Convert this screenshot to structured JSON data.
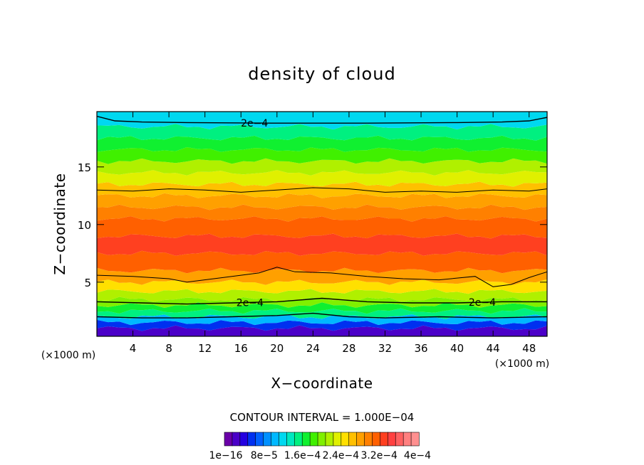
{
  "chart_data": {
    "type": "heatmap",
    "title": "density of cloud",
    "xlabel": "X−coordinate",
    "ylabel": "Z−coordinate",
    "x_unit": "(×1000 m)",
    "y_unit": "(×1000 m)",
    "xlim": [
      0,
      50
    ],
    "ylim": [
      0.3,
      19.8
    ],
    "x_ticks": [
      4,
      8,
      12,
      16,
      20,
      24,
      28,
      32,
      36,
      40,
      44,
      48
    ],
    "y_ticks": [
      5,
      10,
      15
    ],
    "contour_interval_text": "CONTOUR INTERVAL = 1.000E−04",
    "contour_interval": 0.0001,
    "colorbar": {
      "colors": [
        "#6a00a8",
        "#4b00c8",
        "#2400e0",
        "#0030f0",
        "#0060ff",
        "#0090ff",
        "#00b8ff",
        "#00d8f0",
        "#00e8c0",
        "#00f080",
        "#10f030",
        "#40f000",
        "#80f000",
        "#b0f000",
        "#e0f000",
        "#ffe000",
        "#ffc000",
        "#ffa000",
        "#ff8000",
        "#ff6000",
        "#ff4020",
        "#ff4040",
        "#ff6060",
        "#ff8080",
        "#ff9090"
      ],
      "labels": [
        "1e−16",
        "8e−5",
        "1.6e−4",
        "2.4e−4",
        "3.2e−4",
        "4e−4"
      ],
      "min": 1e-16,
      "max": 0.0004
    },
    "layers": [
      {
        "z": 0.3,
        "value": 2e-05
      },
      {
        "z": 1.0,
        "value": 4e-05
      },
      {
        "z": 1.5,
        "value": 8e-05
      },
      {
        "z": 2.0,
        "value": 0.00013
      },
      {
        "z": 2.5,
        "value": 0.00016
      },
      {
        "z": 3.0,
        "value": 0.00019
      },
      {
        "z": 3.5,
        "value": 0.00021
      },
      {
        "z": 4.2,
        "value": 0.00023
      },
      {
        "z": 5.0,
        "value": 0.00026
      },
      {
        "z": 6.0,
        "value": 0.0003
      },
      {
        "z": 7.5,
        "value": 0.00032
      },
      {
        "z": 9.0,
        "value": 0.00033
      },
      {
        "z": 10.5,
        "value": 0.00031
      },
      {
        "z": 11.5,
        "value": 0.00029
      },
      {
        "z": 12.5,
        "value": 0.00027
      },
      {
        "z": 13.5,
        "value": 0.00025
      },
      {
        "z": 14.5,
        "value": 0.00022
      },
      {
        "z": 15.5,
        "value": 0.0002
      },
      {
        "z": 16.5,
        "value": 0.00018
      },
      {
        "z": 17.5,
        "value": 0.00016
      },
      {
        "z": 18.5,
        "value": 0.00014
      },
      {
        "z": 19.8,
        "value": 0.00011
      }
    ],
    "contours": [
      {
        "level": 0.0002,
        "label": "2e−4",
        "label_x": 17.5,
        "points": [
          [
            0,
            19.4
          ],
          [
            2,
            19.0
          ],
          [
            5,
            18.9
          ],
          [
            10,
            18.85
          ],
          [
            20,
            18.8
          ],
          [
            30,
            18.8
          ],
          [
            40,
            18.85
          ],
          [
            45,
            18.9
          ],
          [
            48,
            19.0
          ],
          [
            50,
            19.3
          ]
        ]
      },
      {
        "level": 0.0003,
        "label": "",
        "points": [
          [
            0,
            13.0
          ],
          [
            4,
            12.9
          ],
          [
            8,
            13.1
          ],
          [
            12,
            13.0
          ],
          [
            16,
            12.8
          ],
          [
            20,
            13.0
          ],
          [
            24,
            13.2
          ],
          [
            28,
            13.1
          ],
          [
            32,
            12.8
          ],
          [
            36,
            12.9
          ],
          [
            40,
            12.8
          ],
          [
            44,
            13.0
          ],
          [
            48,
            12.9
          ],
          [
            50,
            13.1
          ]
        ]
      },
      {
        "level": 0.0003,
        "label": "",
        "points": [
          [
            0,
            5.6
          ],
          [
            4,
            5.5
          ],
          [
            8,
            5.3
          ],
          [
            10,
            5.0
          ],
          [
            14,
            5.4
          ],
          [
            18,
            5.8
          ],
          [
            20,
            6.3
          ],
          [
            22,
            5.9
          ],
          [
            26,
            5.8
          ],
          [
            30,
            5.5
          ],
          [
            34,
            5.3
          ],
          [
            38,
            5.2
          ],
          [
            42,
            5.5
          ],
          [
            44,
            4.6
          ],
          [
            46,
            4.8
          ],
          [
            48,
            5.4
          ],
          [
            50,
            5.9
          ]
        ]
      },
      {
        "level": 0.0002,
        "label": "2e−4",
        "label_x": 17.0,
        "points": [
          [
            0,
            3.3
          ],
          [
            5,
            3.2
          ],
          [
            10,
            3.1
          ],
          [
            15,
            3.2
          ],
          [
            20,
            3.3
          ],
          [
            25,
            3.6
          ],
          [
            30,
            3.3
          ],
          [
            35,
            3.2
          ],
          [
            40,
            3.2
          ],
          [
            45,
            3.3
          ],
          [
            50,
            3.3
          ]
        ]
      },
      {
        "level": 0.0002,
        "label": "2e−4",
        "label_x": 42.8,
        "label_only": true,
        "points": []
      },
      {
        "level": 0.0001,
        "label": "",
        "points": [
          [
            0,
            2.0
          ],
          [
            5,
            1.9
          ],
          [
            10,
            1.9
          ],
          [
            15,
            2.0
          ],
          [
            20,
            2.1
          ],
          [
            24,
            2.3
          ],
          [
            28,
            2.0
          ],
          [
            32,
            1.9
          ],
          [
            38,
            2.0
          ],
          [
            44,
            1.9
          ],
          [
            50,
            2.0
          ]
        ]
      }
    ]
  }
}
